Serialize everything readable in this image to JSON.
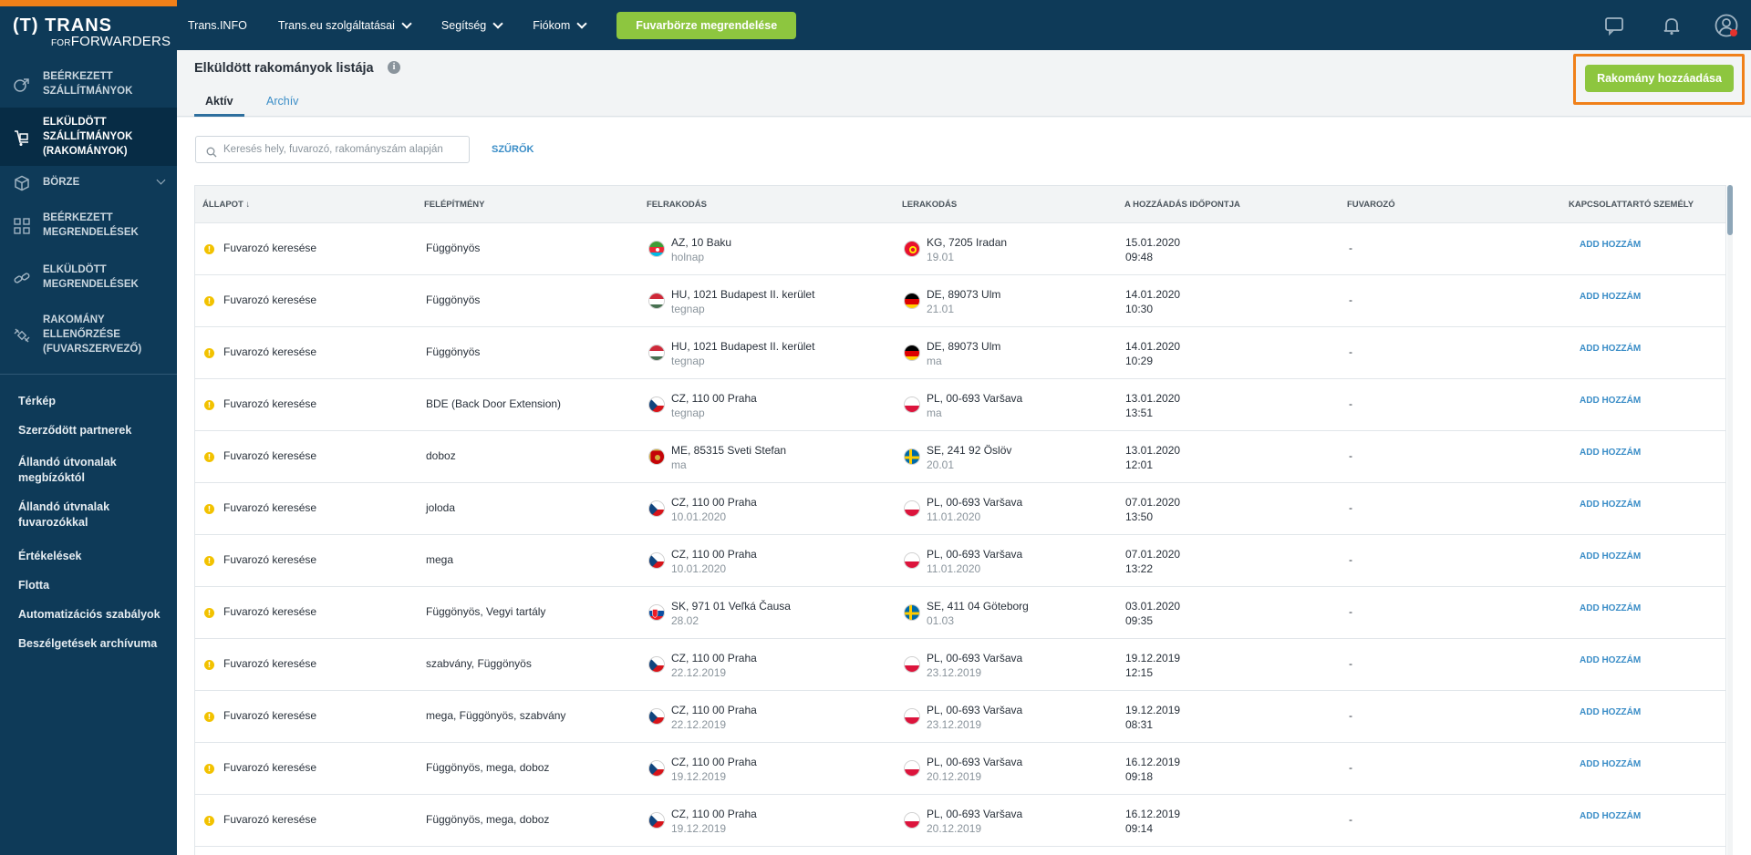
{
  "colors": {
    "brand": "#0e3a58",
    "accent_orange": "#f08019",
    "accent_green": "#8dc63f",
    "link_blue": "#3a8dc7",
    "status_yellow": "#f2c200"
  },
  "logo": {
    "line1": "(T) TRANS",
    "line2_small": "FOR",
    "line2": "FORWARDERS"
  },
  "topnav": {
    "items": [
      {
        "label": "Trans.INFO",
        "has_dropdown": false
      },
      {
        "label": "Trans.eu szolgáltatásai",
        "has_dropdown": true
      },
      {
        "label": "Segítség",
        "has_dropdown": true
      },
      {
        "label": "Fiókom",
        "has_dropdown": true
      }
    ],
    "order_button": "Fuvarbörze megrendelése",
    "icons": [
      "chat-icon",
      "bell-icon",
      "user-icon"
    ]
  },
  "sidebar": {
    "main_items": [
      {
        "label": "BEÉRKEZETT SZÁLLÍTMÁNYOK",
        "icon": "incoming-shipments-icon",
        "active": false
      },
      {
        "label": "ELKÜLDÖTT SZÁLLÍTMÁNYOK (RAKOMÁNYOK)",
        "icon": "sent-shipments-icon",
        "active": true
      },
      {
        "label": "BÖRZE",
        "icon": "box-icon",
        "active": false,
        "expandable": true
      },
      {
        "label": "BEÉRKEZETT MEGRENDELÉSEK",
        "icon": "grid-icon",
        "active": false
      },
      {
        "label": "ELKÜLDÖTT MEGRENDELÉSEK",
        "icon": "link-icon",
        "active": false
      },
      {
        "label": "RAKOMÁNY ELLENŐRZÉSE (FUVARSZERVEZŐ)",
        "icon": "satellite-icon",
        "active": false
      }
    ],
    "links": [
      "Térkép",
      "Szerződött partnerek",
      "Állandó útvonalak megbízóktól",
      "Állandó útvnalak fuvarozókkal",
      "Értékelések",
      "Flotta",
      "Automatizációs szabályok",
      "Beszélgetések archívuma"
    ]
  },
  "page": {
    "title": "Elküldött rakományok listája",
    "tabs": [
      {
        "label": "Aktív",
        "active": true
      },
      {
        "label": "Archív",
        "active": false
      }
    ],
    "add_button": "Rakomány hozzáadása",
    "search": {
      "placeholder": "Keresés hely, fuvarozó, rakományszám alapján",
      "value": ""
    },
    "filter_label": "SZŰRŐK"
  },
  "table": {
    "columns": [
      "ÁLLAPOT ↓",
      "FELÉPÍTMÉNY",
      "FELRAKODÁS",
      "LERAKODÁS",
      "A HOZZÁADÁS IDŐPONTJA",
      "FUVAROZÓ",
      "KAPCSOLATTARTÓ SZEMÉLY"
    ],
    "rows": [
      {
        "status": "Fuvarozó keresése",
        "body": "Függönyös",
        "load_flag": "az",
        "load_place": "AZ, 10 Baku",
        "load_date": "holnap",
        "unload_flag": "kg",
        "unload_place": "KG, 7205 Iradan",
        "unload_date": "19.01",
        "added_date": "15.01.2020",
        "added_time": "09:48",
        "carrier": "-",
        "contact": "ADD HOZZÁM"
      },
      {
        "status": "Fuvarozó keresése",
        "body": "Függönyös",
        "load_flag": "hu",
        "load_place": "HU, 1021 Budapest II. kerület",
        "load_date": "tegnap",
        "unload_flag": "de",
        "unload_place": "DE, 89073 Ulm",
        "unload_date": "21.01",
        "added_date": "14.01.2020",
        "added_time": "10:30",
        "carrier": "-",
        "contact": "ADD HOZZÁM"
      },
      {
        "status": "Fuvarozó keresése",
        "body": "Függönyös",
        "load_flag": "hu",
        "load_place": "HU, 1021 Budapest II. kerület",
        "load_date": "tegnap",
        "unload_flag": "de",
        "unload_place": "DE, 89073 Ulm",
        "unload_date": "ma",
        "added_date": "14.01.2020",
        "added_time": "10:29",
        "carrier": "-",
        "contact": "ADD HOZZÁM"
      },
      {
        "status": "Fuvarozó keresése",
        "body": "BDE (Back Door Extension)",
        "load_flag": "cz",
        "load_place": "CZ, 110 00 Praha",
        "load_date": "tegnap",
        "unload_flag": "pl",
        "unload_place": "PL, 00-693 Varšava",
        "unload_date": "ma",
        "added_date": "13.01.2020",
        "added_time": "13:51",
        "carrier": "-",
        "contact": "ADD HOZZÁM"
      },
      {
        "status": "Fuvarozó keresése",
        "body": "doboz",
        "load_flag": "me",
        "load_place": "ME, 85315 Sveti Stefan",
        "load_date": "ma",
        "unload_flag": "se",
        "unload_place": "SE, 241 92 Öslöv",
        "unload_date": "20.01",
        "added_date": "13.01.2020",
        "added_time": "12:01",
        "carrier": "-",
        "contact": "ADD HOZZÁM"
      },
      {
        "status": "Fuvarozó keresése",
        "body": "joloda",
        "load_flag": "cz",
        "load_place": "CZ, 110 00 Praha",
        "load_date": "10.01.2020",
        "unload_flag": "pl",
        "unload_place": "PL, 00-693 Varšava",
        "unload_date": "11.01.2020",
        "added_date": "07.01.2020",
        "added_time": "13:50",
        "carrier": "-",
        "contact": "ADD HOZZÁM"
      },
      {
        "status": "Fuvarozó keresése",
        "body": "mega",
        "load_flag": "cz",
        "load_place": "CZ, 110 00 Praha",
        "load_date": "10.01.2020",
        "unload_flag": "pl",
        "unload_place": "PL, 00-693 Varšava",
        "unload_date": "11.01.2020",
        "added_date": "07.01.2020",
        "added_time": "13:22",
        "carrier": "-",
        "contact": "ADD HOZZÁM"
      },
      {
        "status": "Fuvarozó keresése",
        "body": "Függönyös, Vegyi tartály",
        "load_flag": "sk",
        "load_place": "SK, 971 01 Veľká Čausa",
        "load_date": "28.02",
        "unload_flag": "se",
        "unload_place": "SE, 411 04 Göteborg",
        "unload_date": "01.03",
        "added_date": "03.01.2020",
        "added_time": "09:35",
        "carrier": "-",
        "contact": "ADD HOZZÁM"
      },
      {
        "status": "Fuvarozó keresése",
        "body": "szabvány, Függönyös",
        "load_flag": "cz",
        "load_place": "CZ, 110 00 Praha",
        "load_date": "22.12.2019",
        "unload_flag": "pl",
        "unload_place": "PL, 00-693 Varšava",
        "unload_date": "23.12.2019",
        "added_date": "19.12.2019",
        "added_time": "12:15",
        "carrier": "-",
        "contact": "ADD HOZZÁM"
      },
      {
        "status": "Fuvarozó keresése",
        "body": "mega, Függönyös, szabvány",
        "load_flag": "cz",
        "load_place": "CZ, 110 00 Praha",
        "load_date": "22.12.2019",
        "unload_flag": "pl",
        "unload_place": "PL, 00-693 Varšava",
        "unload_date": "23.12.2019",
        "added_date": "19.12.2019",
        "added_time": "08:31",
        "carrier": "-",
        "contact": "ADD HOZZÁM"
      },
      {
        "status": "Fuvarozó keresése",
        "body": "Függönyös, mega, doboz",
        "load_flag": "cz",
        "load_place": "CZ, 110 00 Praha",
        "load_date": "19.12.2019",
        "unload_flag": "pl",
        "unload_place": "PL, 00-693 Varšava",
        "unload_date": "20.12.2019",
        "added_date": "16.12.2019",
        "added_time": "09:18",
        "carrier": "-",
        "contact": "ADD HOZZÁM"
      },
      {
        "status": "Fuvarozó keresése",
        "body": "Függönyös, mega, doboz",
        "load_flag": "cz",
        "load_place": "CZ, 110 00 Praha",
        "load_date": "19.12.2019",
        "unload_flag": "pl",
        "unload_place": "PL, 00-693 Varšava",
        "unload_date": "20.12.2019",
        "added_date": "16.12.2019",
        "added_time": "09:14",
        "carrier": "-",
        "contact": "ADD HOZZÁM"
      }
    ]
  }
}
